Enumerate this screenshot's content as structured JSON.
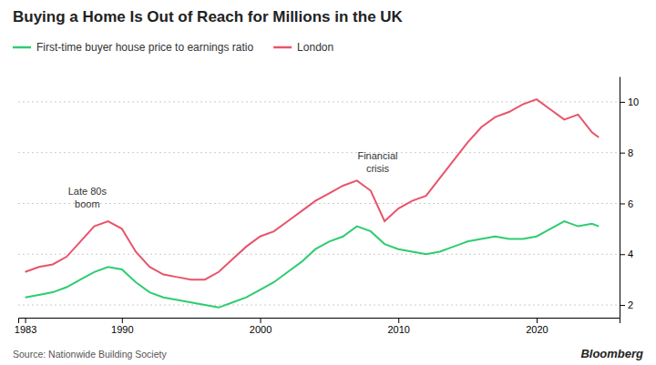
{
  "chart_data": {
    "type": "line",
    "title": "Buying a Home Is Out of Reach for Millions in the UK",
    "source": "Source: Nationwide Building Society",
    "credit": "Bloomberg",
    "x": [
      1983,
      1984,
      1985,
      1986,
      1987,
      1988,
      1989,
      1990,
      1991,
      1992,
      1993,
      1994,
      1995,
      1996,
      1997,
      1998,
      1999,
      2000,
      2001,
      2002,
      2003,
      2004,
      2005,
      2006,
      2007,
      2008,
      2009,
      2010,
      2011,
      2012,
      2013,
      2014,
      2015,
      2016,
      2017,
      2018,
      2019,
      2020,
      2021,
      2022,
      2023,
      2024,
      2024.5
    ],
    "series": [
      {
        "name": "First-time buyer house price to earnings ratio",
        "color": "#2ecc71",
        "values": [
          2.3,
          2.4,
          2.5,
          2.7,
          3.0,
          3.3,
          3.5,
          3.4,
          2.9,
          2.5,
          2.3,
          2.2,
          2.1,
          2.0,
          1.9,
          2.1,
          2.3,
          2.6,
          2.9,
          3.3,
          3.7,
          4.2,
          4.5,
          4.7,
          5.1,
          4.9,
          4.4,
          4.2,
          4.1,
          4.0,
          4.1,
          4.3,
          4.5,
          4.6,
          4.7,
          4.6,
          4.6,
          4.7,
          5.0,
          5.3,
          5.1,
          5.2,
          5.1
        ]
      },
      {
        "name": "London",
        "color": "#e8546a",
        "values": [
          3.3,
          3.5,
          3.6,
          3.9,
          4.5,
          5.1,
          5.3,
          5.0,
          4.1,
          3.5,
          3.2,
          3.1,
          3.0,
          3.0,
          3.3,
          3.8,
          4.3,
          4.7,
          4.9,
          5.3,
          5.7,
          6.1,
          6.4,
          6.7,
          6.9,
          6.5,
          5.3,
          5.8,
          6.1,
          6.3,
          7.0,
          7.7,
          8.4,
          9.0,
          9.4,
          9.6,
          9.9,
          10.1,
          9.7,
          9.3,
          9.5,
          8.8,
          8.6
        ]
      }
    ],
    "annotations": [
      {
        "text": "Late 80s\nboom",
        "x": 1987.5,
        "y": 5.7
      },
      {
        "text": "Financial\ncrisis",
        "x": 2008.5,
        "y": 7.1
      }
    ],
    "xlim": [
      1982.5,
      2026
    ],
    "xticks": [
      1983,
      1990,
      2000,
      2010,
      2020
    ],
    "ylim": [
      1.5,
      11.0
    ],
    "yticks": [
      2,
      4,
      6,
      8,
      10
    ],
    "grid": true,
    "legend": "top-left"
  }
}
